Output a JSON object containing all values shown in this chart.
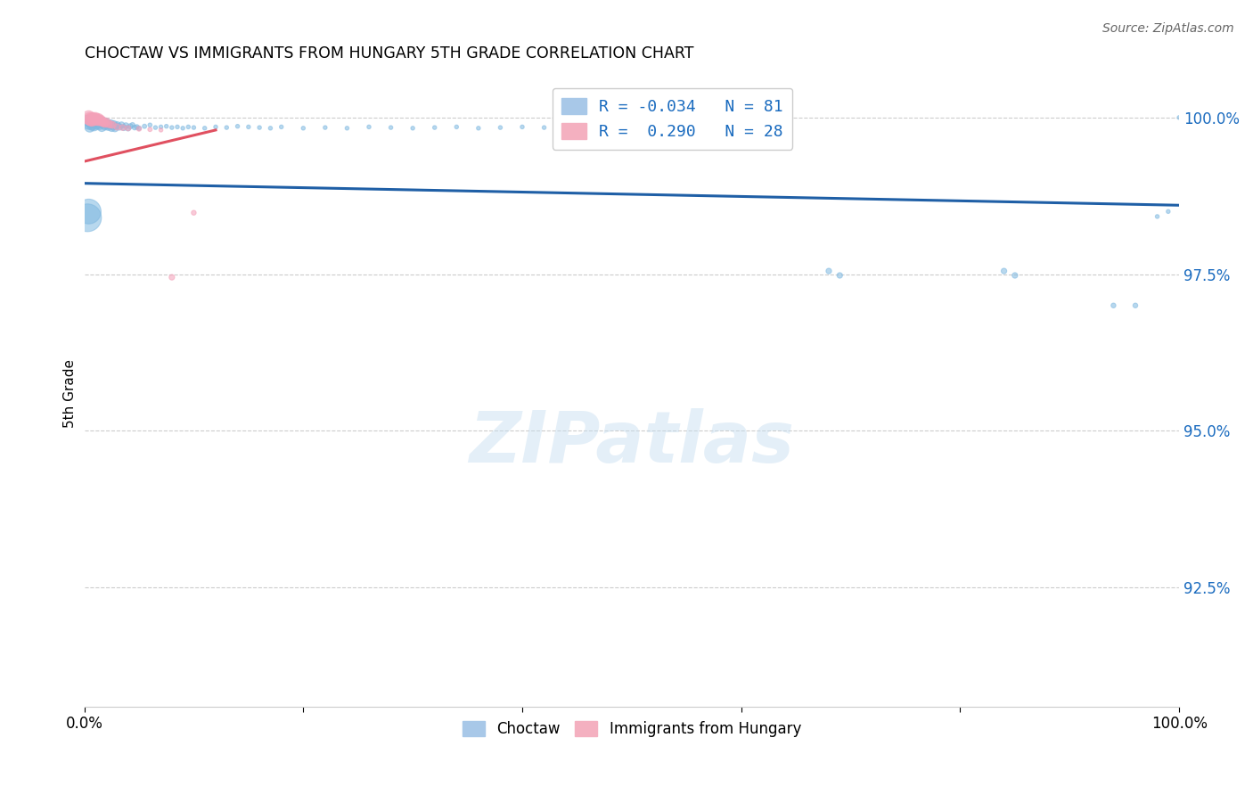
{
  "title": "CHOCTAW VS IMMIGRANTS FROM HUNGARY 5TH GRADE CORRELATION CHART",
  "source": "Source: ZipAtlas.com",
  "ylabel": "5th Grade",
  "xlim": [
    0.0,
    1.0
  ],
  "ylim": [
    0.906,
    1.006
  ],
  "yticks": [
    0.925,
    0.95,
    0.975,
    1.0
  ],
  "ytick_labels": [
    "92.5%",
    "95.0%",
    "97.5%",
    "100.0%"
  ],
  "xticks": [
    0.0,
    0.2,
    0.4,
    0.6,
    0.8,
    1.0
  ],
  "xtick_labels": [
    "0.0%",
    "",
    "",
    "",
    "",
    "100.0%"
  ],
  "blue_color": "#7fb8e0",
  "pink_color": "#f4a0b8",
  "trendline_blue_color": "#1f5fa6",
  "trendline_pink_color": "#e05060",
  "watermark_text": "ZIPatlas",
  "blue_R": "-0.034",
  "blue_N": "81",
  "pink_R": "0.290",
  "pink_N": "28",
  "blue_scatter_x": [
    0.003,
    0.004,
    0.005,
    0.006,
    0.007,
    0.008,
    0.008,
    0.009,
    0.009,
    0.01,
    0.011,
    0.012,
    0.013,
    0.014,
    0.015,
    0.016,
    0.017,
    0.018,
    0.019,
    0.02,
    0.021,
    0.022,
    0.023,
    0.024,
    0.025,
    0.026,
    0.027,
    0.028,
    0.029,
    0.03,
    0.032,
    0.034,
    0.036,
    0.038,
    0.04,
    0.042,
    0.044,
    0.046,
    0.048,
    0.05,
    0.055,
    0.06,
    0.065,
    0.07,
    0.075,
    0.08,
    0.085,
    0.09,
    0.095,
    0.1,
    0.11,
    0.12,
    0.13,
    0.14,
    0.15,
    0.16,
    0.17,
    0.18,
    0.2,
    0.22,
    0.24,
    0.26,
    0.28,
    0.3,
    0.32,
    0.34,
    0.36,
    0.38,
    0.4,
    0.42,
    0.68,
    0.69,
    0.84,
    0.85,
    0.94,
    0.96,
    0.98,
    0.99,
    1.0,
    0.003,
    0.004
  ],
  "blue_scatter_y": [
    0.9995,
    0.999,
    0.9985,
    0.9992,
    0.9988,
    0.9993,
    0.9998,
    0.9987,
    0.9994,
    0.9991,
    0.9989,
    0.9993,
    0.9996,
    0.9988,
    0.9991,
    0.9985,
    0.999,
    0.9993,
    0.9987,
    0.9989,
    0.9991,
    0.9986,
    0.9988,
    0.999,
    0.9984,
    0.9987,
    0.9989,
    0.9983,
    0.9986,
    0.9988,
    0.9985,
    0.9988,
    0.9984,
    0.9987,
    0.9983,
    0.9986,
    0.9988,
    0.9984,
    0.9985,
    0.9983,
    0.9986,
    0.9988,
    0.9984,
    0.9985,
    0.9986,
    0.9984,
    0.9985,
    0.9983,
    0.9985,
    0.9984,
    0.9983,
    0.9985,
    0.9984,
    0.9986,
    0.9985,
    0.9984,
    0.9983,
    0.9985,
    0.9983,
    0.9984,
    0.9983,
    0.9985,
    0.9984,
    0.9983,
    0.9984,
    0.9985,
    0.9983,
    0.9984,
    0.9985,
    0.9984,
    0.9755,
    0.9748,
    0.9755,
    0.9748,
    0.97,
    0.97,
    0.9842,
    0.985,
    1.0,
    0.984,
    0.985
  ],
  "blue_scatter_sizes": [
    80,
    80,
    70,
    70,
    70,
    70,
    70,
    70,
    70,
    65,
    65,
    60,
    60,
    55,
    55,
    55,
    50,
    50,
    50,
    48,
    45,
    45,
    42,
    42,
    40,
    38,
    36,
    34,
    32,
    30,
    28,
    26,
    24,
    22,
    20,
    18,
    16,
    15,
    14,
    13,
    12,
    11,
    10,
    10,
    10,
    10,
    10,
    10,
    10,
    10,
    10,
    10,
    10,
    10,
    10,
    10,
    10,
    10,
    10,
    10,
    10,
    10,
    10,
    10,
    10,
    10,
    10,
    10,
    10,
    10,
    20,
    20,
    20,
    20,
    15,
    15,
    10,
    10,
    10,
    500,
    400
  ],
  "pink_scatter_x": [
    0.004,
    0.005,
    0.006,
    0.007,
    0.008,
    0.009,
    0.01,
    0.011,
    0.012,
    0.013,
    0.014,
    0.015,
    0.016,
    0.017,
    0.018,
    0.019,
    0.02,
    0.022,
    0.024,
    0.026,
    0.03,
    0.035,
    0.04,
    0.05,
    0.06,
    0.07,
    0.08,
    0.1
  ],
  "pink_scatter_y": [
    1.0,
    0.9998,
    0.9997,
    0.9996,
    0.9998,
    0.9997,
    0.9999,
    0.9997,
    0.9996,
    0.9998,
    0.9995,
    0.9996,
    0.9994,
    0.9993,
    0.9992,
    0.9991,
    0.9993,
    0.999,
    0.9989,
    0.9988,
    0.9985,
    0.9984,
    0.9983,
    0.9982,
    0.9981,
    0.998,
    0.9745,
    0.9848
  ],
  "pink_scatter_sizes": [
    120,
    110,
    105,
    100,
    95,
    90,
    85,
    80,
    75,
    70,
    65,
    60,
    55,
    50,
    48,
    45,
    42,
    38,
    34,
    30,
    26,
    22,
    18,
    15,
    12,
    10,
    20,
    15
  ],
  "blue_trendline_x": [
    0.0,
    1.0
  ],
  "blue_trendline_y": [
    0.9895,
    0.986
  ],
  "pink_trendline_x": [
    0.0,
    0.12
  ],
  "pink_trendline_y": [
    0.993,
    0.998
  ]
}
